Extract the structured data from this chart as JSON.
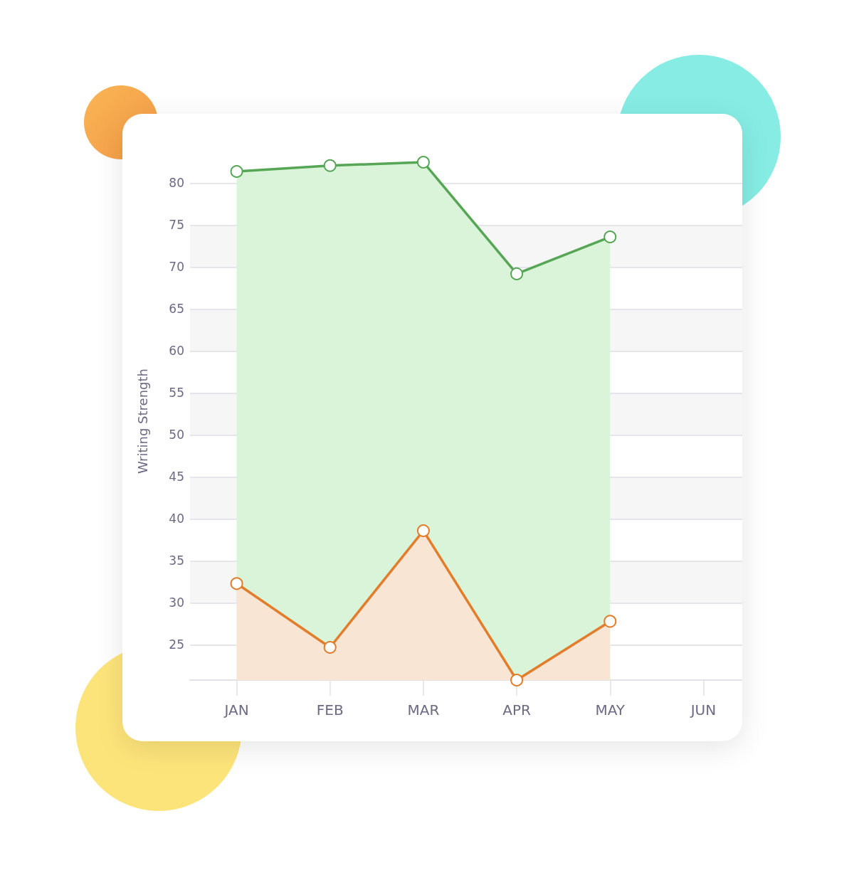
{
  "chart_data": {
    "type": "area",
    "ylabel": "Writing Strength",
    "categories": [
      "JAN",
      "FEB",
      "MAR",
      "APR",
      "MAY",
      "JUN"
    ],
    "series": [
      {
        "color": "#56a656",
        "values": [
          81.4,
          82.1,
          82.5,
          69.2,
          73.6,
          null
        ]
      },
      {
        "color": "#e27d2c",
        "values": [
          32.3,
          24.7,
          38.6,
          20.8,
          27.8,
          null
        ]
      }
    ],
    "ylim": [
      20.8,
      82.5
    ],
    "yticks": [
      25,
      30,
      35,
      40,
      45,
      50,
      55,
      60,
      65,
      70,
      75,
      80
    ],
    "grid": "y",
    "marker": "circle",
    "line_style": "solid"
  }
}
